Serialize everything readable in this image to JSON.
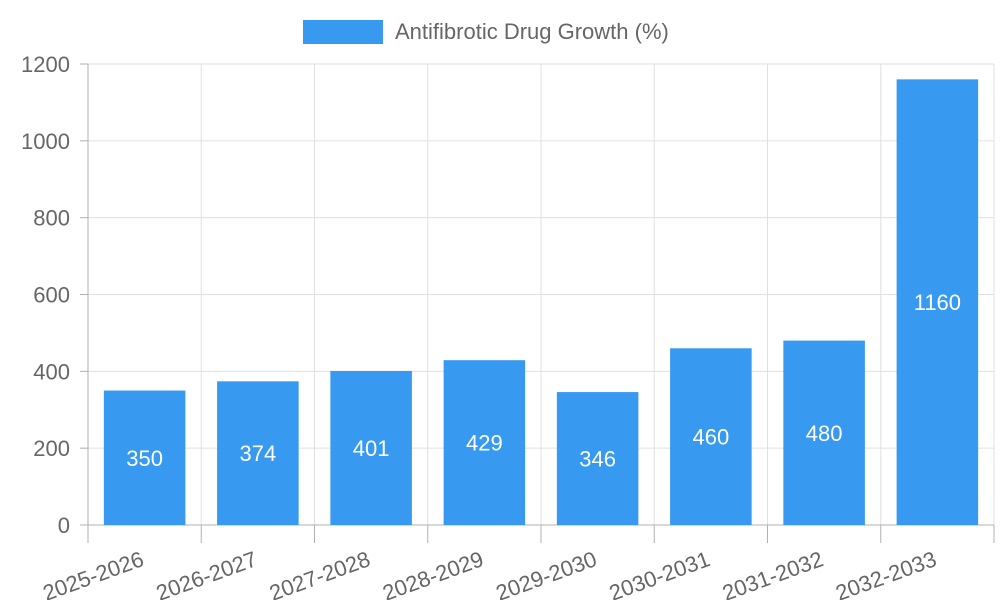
{
  "chart_data": {
    "type": "bar",
    "title": "",
    "xlabel": "",
    "ylabel": "",
    "categories": [
      "2025-2026",
      "2026-2027",
      "2027-2028",
      "2028-2029",
      "2029-2030",
      "2030-2031",
      "2031-2032",
      "2032-2033"
    ],
    "series": [
      {
        "name": "Antifibrotic Drug Growth (%)",
        "values": [
          350,
          374,
          401,
          429,
          346,
          460,
          480,
          1160
        ],
        "color": "#3799EF"
      }
    ],
    "ylim": [
      0,
      1200
    ],
    "yticks": [
      0,
      200,
      400,
      600,
      800,
      1000,
      1200
    ],
    "grid": true,
    "legend_position": "top-center",
    "data_labels": true,
    "label_color": "#ffffff",
    "grid_color": "#e0e0e0",
    "axis_color": "#b0b0b0",
    "text_color": "#666666"
  }
}
